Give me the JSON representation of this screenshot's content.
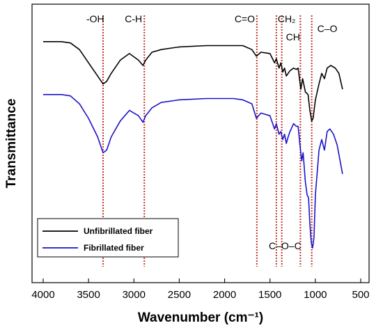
{
  "chart_data": {
    "type": "line",
    "title": "",
    "xlabel": "Wavenumber (cm⁻¹)",
    "ylabel": "Transmittance",
    "xlim": [
      4000,
      500
    ],
    "x_reversed": true,
    "xticks": [
      4000,
      3500,
      3000,
      2500,
      2000,
      1500,
      1000,
      500
    ],
    "ylim": [
      0,
      100
    ],
    "yticks_shown": false,
    "grid": false,
    "legend_position": "bottom-left",
    "series": [
      {
        "name": "Unfibrillated fiber",
        "color": "#000000",
        "points": [
          [
            4000,
            89
          ],
          [
            3800,
            89
          ],
          [
            3700,
            88.5
          ],
          [
            3600,
            86
          ],
          [
            3500,
            81
          ],
          [
            3400,
            76
          ],
          [
            3340,
            73
          ],
          [
            3300,
            74
          ],
          [
            3250,
            77
          ],
          [
            3150,
            82
          ],
          [
            3050,
            84.5
          ],
          [
            2950,
            82
          ],
          [
            2900,
            80
          ],
          [
            2870,
            82
          ],
          [
            2800,
            85
          ],
          [
            2700,
            86
          ],
          [
            2500,
            87
          ],
          [
            2200,
            87.5
          ],
          [
            1900,
            87.5
          ],
          [
            1800,
            87.5
          ],
          [
            1700,
            86
          ],
          [
            1650,
            83.5
          ],
          [
            1600,
            85
          ],
          [
            1500,
            84.5
          ],
          [
            1450,
            81
          ],
          [
            1430,
            82.5
          ],
          [
            1400,
            79
          ],
          [
            1380,
            81
          ],
          [
            1360,
            77.5
          ],
          [
            1340,
            79
          ],
          [
            1320,
            76
          ],
          [
            1300,
            77
          ],
          [
            1280,
            78
          ],
          [
            1240,
            79
          ],
          [
            1210,
            78.5
          ],
          [
            1190,
            79
          ],
          [
            1160,
            71
          ],
          [
            1140,
            75
          ],
          [
            1110,
            70
          ],
          [
            1080,
            69
          ],
          [
            1060,
            63
          ],
          [
            1040,
            59
          ],
          [
            1025,
            60
          ],
          [
            1000,
            67
          ],
          [
            960,
            73
          ],
          [
            930,
            77
          ],
          [
            900,
            75
          ],
          [
            870,
            79
          ],
          [
            830,
            80
          ],
          [
            780,
            79
          ],
          [
            740,
            77
          ],
          [
            700,
            71
          ]
        ]
      },
      {
        "name": "Fibrillated fiber",
        "color": "#1a12c8",
        "points": [
          [
            4000,
            69
          ],
          [
            3800,
            69
          ],
          [
            3700,
            68.5
          ],
          [
            3600,
            65.5
          ],
          [
            3500,
            60
          ],
          [
            3400,
            53
          ],
          [
            3340,
            47
          ],
          [
            3300,
            48
          ],
          [
            3250,
            53
          ],
          [
            3150,
            59
          ],
          [
            3050,
            63
          ],
          [
            2950,
            61
          ],
          [
            2900,
            58.5
          ],
          [
            2870,
            61
          ],
          [
            2800,
            64
          ],
          [
            2700,
            66
          ],
          [
            2500,
            67
          ],
          [
            2200,
            67.5
          ],
          [
            1900,
            67.5
          ],
          [
            1800,
            67
          ],
          [
            1700,
            65.5
          ],
          [
            1650,
            60
          ],
          [
            1600,
            62
          ],
          [
            1500,
            61
          ],
          [
            1450,
            56
          ],
          [
            1430,
            58
          ],
          [
            1400,
            54
          ],
          [
            1380,
            55
          ],
          [
            1360,
            52
          ],
          [
            1340,
            54
          ],
          [
            1320,
            50.5
          ],
          [
            1300,
            53
          ],
          [
            1280,
            55
          ],
          [
            1240,
            58
          ],
          [
            1210,
            57
          ],
          [
            1190,
            57
          ],
          [
            1170,
            50
          ],
          [
            1150,
            44
          ],
          [
            1135,
            47
          ],
          [
            1110,
            36
          ],
          [
            1090,
            31
          ],
          [
            1075,
            30
          ],
          [
            1060,
            20
          ],
          [
            1045,
            13
          ],
          [
            1030,
            11
          ],
          [
            1015,
            15
          ],
          [
            1000,
            31
          ],
          [
            960,
            48
          ],
          [
            930,
            52
          ],
          [
            900,
            48
          ],
          [
            870,
            55
          ],
          [
            840,
            56
          ],
          [
            800,
            54
          ],
          [
            760,
            50
          ],
          [
            700,
            39
          ]
        ]
      }
    ],
    "annotations": [
      {
        "text": "-OH",
        "x": 3340
      },
      {
        "text": "C-H",
        "x": 2885
      },
      {
        "text": "C=O",
        "x": 1645
      },
      {
        "text": "CH₂",
        "x": 1430
      },
      {
        "text": "CH",
        "x": 1370
      },
      {
        "text": "C–O–C",
        "x": 1165
      },
      {
        "text": "C–O",
        "x": 1040
      }
    ]
  }
}
